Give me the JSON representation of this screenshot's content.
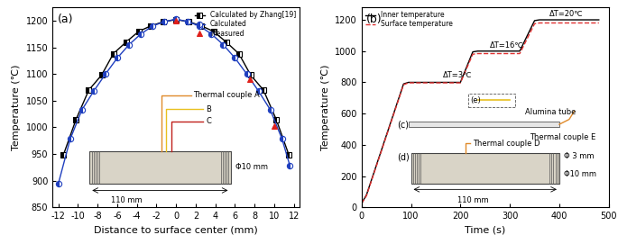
{
  "chart_data": [
    {
      "type": "line",
      "panel_label": "(a)",
      "x_label": "Distance to surface center (mm)",
      "y_label": "Temperature (℃)",
      "xlim": [
        -12.6,
        12.6
      ],
      "xticks": [
        -12,
        -10,
        -8,
        -6,
        -4,
        -2,
        0,
        2,
        4,
        6,
        8,
        10,
        12
      ],
      "ylim": [
        850,
        1225
      ],
      "yticks": [
        850,
        900,
        950,
        1000,
        1050,
        1100,
        1150,
        1200
      ],
      "legend": "upper right",
      "series": [
        {
          "name": "Calculated by Zhang[19]",
          "color": "#000000",
          "marker": "square",
          "line_style": "solid",
          "x": [
            -11.5,
            -10.2,
            -8.9,
            -7.6,
            -6.4,
            -5.1,
            -3.8,
            -2.6,
            -1.3,
            0,
            1.3,
            2.6,
            3.8,
            5.1,
            6.4,
            7.6,
            8.9,
            10.2,
            11.5
          ],
          "values": [
            948,
            1015,
            1070,
            1098,
            1138,
            1160,
            1180,
            1190,
            1198,
            1202,
            1198,
            1190,
            1180,
            1160,
            1138,
            1098,
            1070,
            1015,
            948
          ]
        },
        {
          "name": "Calculated",
          "color": "#1f3fbf",
          "marker": "circle",
          "line_style": "solid",
          "x": [
            -12,
            -10.8,
            -9.6,
            -8.4,
            -7.2,
            -6,
            -4.8,
            -3.6,
            -2.4,
            -1.2,
            0,
            1.2,
            2.4,
            3.6,
            4.8,
            6,
            7.2,
            8.4,
            9.6,
            10.8,
            11.6
          ],
          "values": [
            895,
            978,
            1033,
            1068,
            1100,
            1130,
            1155,
            1175,
            1190,
            1198,
            1203,
            1198,
            1190,
            1175,
            1155,
            1130,
            1100,
            1068,
            1033,
            978,
            928
          ]
        },
        {
          "name": "Measured",
          "color": "#e0201b",
          "marker": "triangle",
          "line_style": "none",
          "x": [
            0,
            7.5,
            10
          ],
          "values": [
            1200,
            1090,
            1003
          ]
        }
      ],
      "annotations": [
        "Thermal couple A",
        "B",
        "C",
        "Φ10 mm",
        "110 mm"
      ]
    },
    {
      "type": "line",
      "panel_label": "(b)",
      "x_label": "Time (s)",
      "y_label": "Temperature (℃)",
      "xlim": [
        0,
        500
      ],
      "xticks": [
        0,
        100,
        200,
        300,
        400,
        500
      ],
      "ylim": [
        0,
        1280
      ],
      "yticks": [
        0,
        200,
        400,
        600,
        800,
        1000,
        1200
      ],
      "legend": "upper left",
      "series": [
        {
          "name": "Inner temperature",
          "color": "#000000",
          "line_style": "solid",
          "x": [
            0,
            10,
            85,
            95,
            200,
            225,
            235,
            320,
            350,
            360,
            480
          ],
          "values": [
            25,
            80,
            790,
            800,
            800,
            995,
            1000,
            1000,
            1195,
            1200,
            1200
          ]
        },
        {
          "name": "Surface temperature",
          "color": "#e03030",
          "line_style": "dashed",
          "x": [
            0,
            10,
            85,
            95,
            200,
            225,
            235,
            320,
            350,
            360,
            480
          ],
          "values": [
            25,
            75,
            785,
            797,
            797,
            980,
            984,
            984,
            1175,
            1180,
            1180
          ]
        }
      ],
      "annotations": [
        "ΔT=3℃",
        "ΔT=16℃",
        "ΔT=20℃",
        "(c)",
        "(d)",
        "(e)",
        "Alumina tube",
        "Thermal couple E",
        "Thermal couple D",
        "Φ 3 mm",
        "Φ10 mm",
        "110 mm"
      ]
    }
  ]
}
